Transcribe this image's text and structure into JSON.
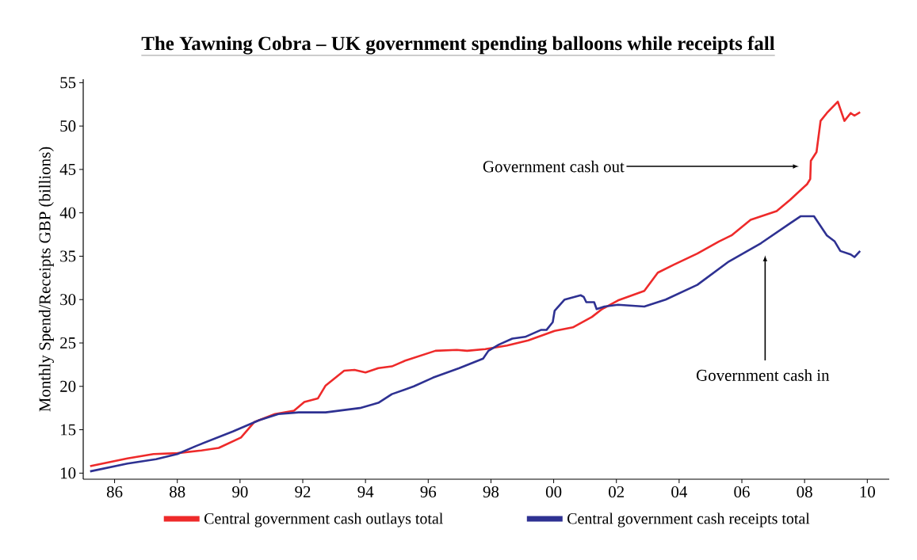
{
  "chart_data": {
    "type": "line",
    "title": "The Yawning Cobra – UK government spending balloons while receipts fall",
    "ylabel": "Monthly Spend/Receipts GBP (billions)",
    "xlim": [
      1985,
      2010.7
    ],
    "ylim": [
      9.3,
      55.4
    ],
    "xticks": [
      {
        "value": 1986,
        "label": "86"
      },
      {
        "value": 1988,
        "label": "88"
      },
      {
        "value": 1990,
        "label": "90"
      },
      {
        "value": 1992,
        "label": "92"
      },
      {
        "value": 1994,
        "label": "94"
      },
      {
        "value": 1996,
        "label": "96"
      },
      {
        "value": 1998,
        "label": "98"
      },
      {
        "value": 2000,
        "label": "00"
      },
      {
        "value": 2002,
        "label": "02"
      },
      {
        "value": 2004,
        "label": "04"
      },
      {
        "value": 2006,
        "label": "06"
      },
      {
        "value": 2008,
        "label": "08"
      },
      {
        "value": 2010,
        "label": "10"
      }
    ],
    "yticks": [
      10,
      15,
      20,
      25,
      30,
      35,
      40,
      45,
      50,
      55
    ],
    "legend": "bottom",
    "grid": false,
    "marker": "none",
    "line_style": "solid",
    "annotations": [
      "Government cash out",
      "Government cash in"
    ],
    "series": [
      {
        "name": "Central government cash outlays total",
        "color": "#ee2a2a",
        "x": [
          1985.22,
          1986.41,
          1987.24,
          1988.0,
          1988.76,
          1989.32,
          1990.03,
          1990.46,
          1991.11,
          1991.72,
          1992.05,
          1992.48,
          1992.73,
          1993.32,
          1993.65,
          1994.0,
          1994.41,
          1994.84,
          1995.29,
          1996.23,
          1996.91,
          1997.24,
          1997.82,
          1998.51,
          1999.19,
          2000.03,
          2000.61,
          2001.22,
          2001.54,
          2002.05,
          2002.89,
          2003.32,
          2003.82,
          2004.58,
          2005.27,
          2005.67,
          2006.28,
          2007.11,
          2007.54,
          2008.08,
          2008.18,
          2008.2,
          2008.38,
          2008.51,
          2008.71,
          2009.06,
          2009.27,
          2009.47,
          2009.59,
          2009.77
        ],
        "values": [
          10.8,
          11.7,
          12.2,
          12.3,
          12.6,
          12.9,
          14.1,
          15.9,
          16.8,
          17.2,
          18.2,
          18.6,
          20.1,
          21.8,
          21.9,
          21.6,
          22.1,
          22.3,
          23.0,
          24.1,
          24.2,
          24.1,
          24.3,
          24.7,
          25.3,
          26.4,
          26.8,
          28.0,
          28.9,
          29.9,
          31.0,
          33.1,
          34.0,
          35.3,
          36.7,
          37.4,
          39.2,
          40.2,
          41.5,
          43.3,
          43.9,
          46.0,
          47.0,
          50.6,
          51.5,
          52.8,
          50.6,
          51.5,
          51.2,
          51.6
        ]
      },
      {
        "name": "Central government cash receipts total",
        "color": "#2e3192",
        "x": [
          1985.22,
          1986.41,
          1987.32,
          1988.0,
          1988.58,
          1989.77,
          1990.61,
          1991.22,
          1991.87,
          1992.73,
          1993.82,
          1994.41,
          1994.84,
          1995.54,
          1996.15,
          1996.99,
          1997.75,
          1997.92,
          1998.25,
          1998.68,
          1999.09,
          1999.59,
          1999.77,
          1999.97,
          2000.03,
          2000.35,
          2000.86,
          2000.96,
          2001.04,
          2001.29,
          2001.37,
          2001.62,
          2002.05,
          2002.89,
          2003.57,
          2004.58,
          2005.59,
          2006.61,
          2007.54,
          2007.87,
          2008.3,
          2008.71,
          2008.96,
          2009.14,
          2009.47,
          2009.59,
          2009.77
        ],
        "values": [
          10.2,
          11.1,
          11.6,
          12.2,
          13.1,
          14.8,
          16.1,
          16.8,
          17.0,
          17.0,
          17.5,
          18.1,
          19.1,
          20.0,
          21.0,
          22.1,
          23.2,
          24.1,
          24.8,
          25.5,
          25.7,
          26.5,
          26.5,
          27.4,
          28.7,
          30.0,
          30.5,
          30.3,
          29.7,
          29.7,
          28.9,
          29.2,
          29.4,
          29.2,
          30.0,
          31.7,
          34.4,
          36.5,
          38.8,
          39.6,
          39.6,
          37.4,
          36.7,
          35.6,
          35.2,
          34.9,
          35.6
        ]
      }
    ]
  }
}
